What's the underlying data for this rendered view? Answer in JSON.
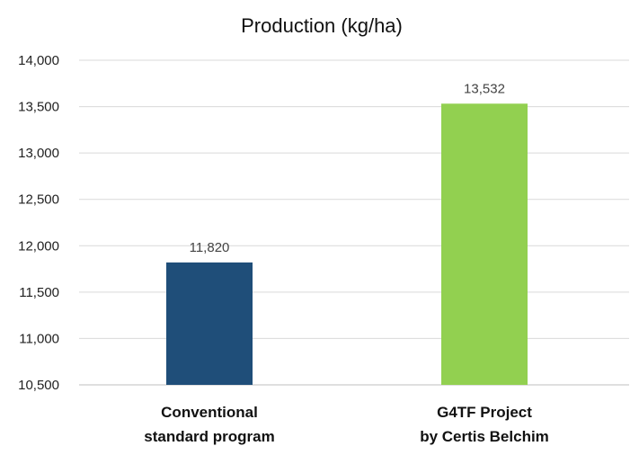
{
  "chart_data": {
    "type": "bar",
    "title": "Production (kg/ha)",
    "xlabel": "",
    "ylabel": "",
    "categories": [
      [
        "Conventional",
        "standard program"
      ],
      [
        "G4TF Project",
        "by Certis Belchim"
      ]
    ],
    "values": [
      11820,
      13532
    ],
    "value_labels": [
      "11,820",
      "13,532"
    ],
    "colors": [
      "#1f4e79",
      "#92d050"
    ],
    "ylim": [
      10500,
      14000
    ],
    "yticks": [
      10500,
      11000,
      11500,
      12000,
      12500,
      13000,
      13500,
      14000
    ],
    "ytick_labels": [
      "10,500",
      "11,000",
      "11,500",
      "12,000",
      "12,500",
      "13,000",
      "13,500",
      "14,000"
    ],
    "grid": true,
    "legend": "none"
  }
}
